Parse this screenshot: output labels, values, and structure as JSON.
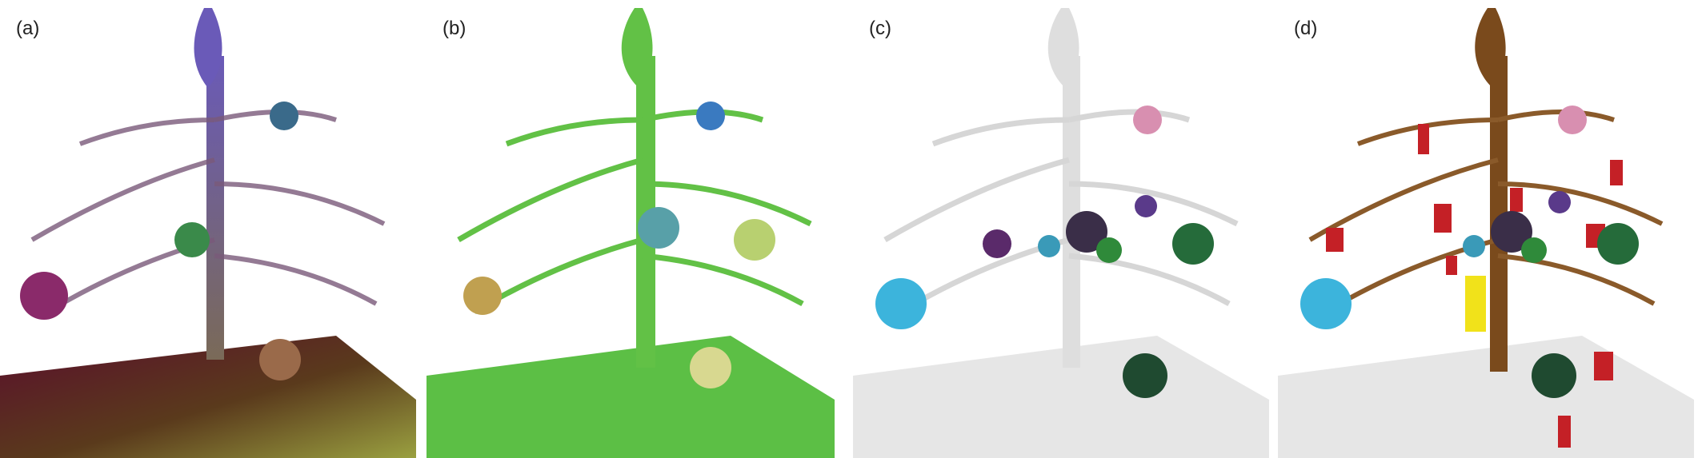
{
  "figure": {
    "panels": [
      {
        "label": "(a)",
        "style": "rgb-point-cloud"
      },
      {
        "label": "(b)",
        "style": "instance-segmentation"
      },
      {
        "label": "(c)",
        "style": "highlighted-spheres"
      },
      {
        "label": "(d)",
        "style": "highlighted-objects-and-trunk"
      }
    ],
    "colors": {
      "ground_a_start": "#6b1030",
      "ground_a_end": "#9aa040",
      "ground_b": "#5cbf45",
      "ground_c": "#e6e6e6",
      "tree_a": "#7b55a8",
      "tree_b": "#62c146",
      "tree_c": "#dedede",
      "tree_d": "#7a4a1c",
      "highlight_red": "#c42026",
      "highlight_yellow": "#f1e21a",
      "sphere_blue": "#3cb4dc",
      "sphere_dark": "#3a2e48",
      "sphere_green": "#256b3a",
      "sphere_pink": "#d88fb0",
      "sphere_purple": "#5a3a8a"
    }
  }
}
